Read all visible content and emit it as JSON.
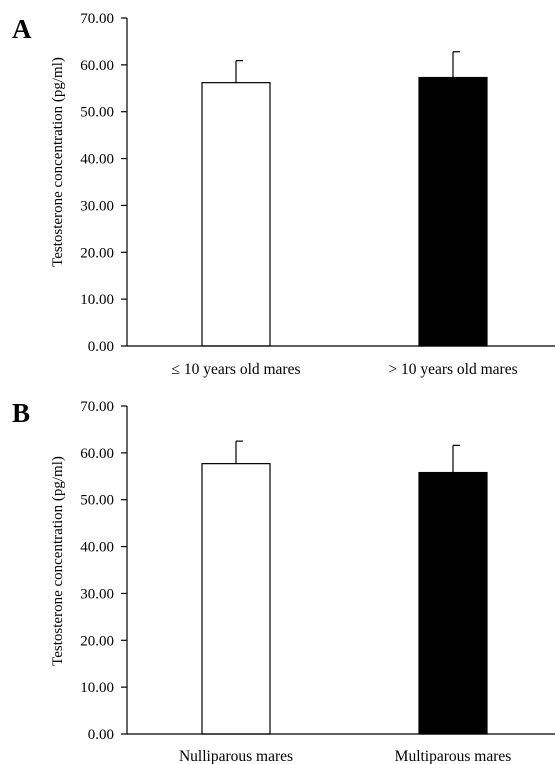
{
  "chart_data": [
    {
      "type": "bar",
      "panel": "A",
      "categories": [
        "≤ 10 years old mares",
        "> 10 years old mares"
      ],
      "values": [
        56.2,
        57.3
      ],
      "errors": [
        4.7,
        5.5
      ],
      "bar_colors": [
        "#ffffff",
        "#000000"
      ],
      "ylabel": "Testosterone concentration (pg/ml)",
      "ylim": [
        0,
        70
      ],
      "yticks": [
        "0.00",
        "10.00",
        "20.00",
        "30.00",
        "40.00",
        "50.00",
        "60.00",
        "70.00"
      ],
      "grid": false
    },
    {
      "type": "bar",
      "panel": "B",
      "categories": [
        "Nulliparous mares",
        "Multiparous mares"
      ],
      "values": [
        57.7,
        55.8
      ],
      "errors": [
        4.8,
        5.8
      ],
      "bar_colors": [
        "#ffffff",
        "#000000"
      ],
      "ylabel": "Testosterone concentration (pg/ml)",
      "ylim": [
        0,
        70
      ],
      "yticks": [
        "0.00",
        "10.00",
        "20.00",
        "30.00",
        "40.00",
        "50.00",
        "60.00",
        "70.00"
      ],
      "grid": false
    }
  ]
}
